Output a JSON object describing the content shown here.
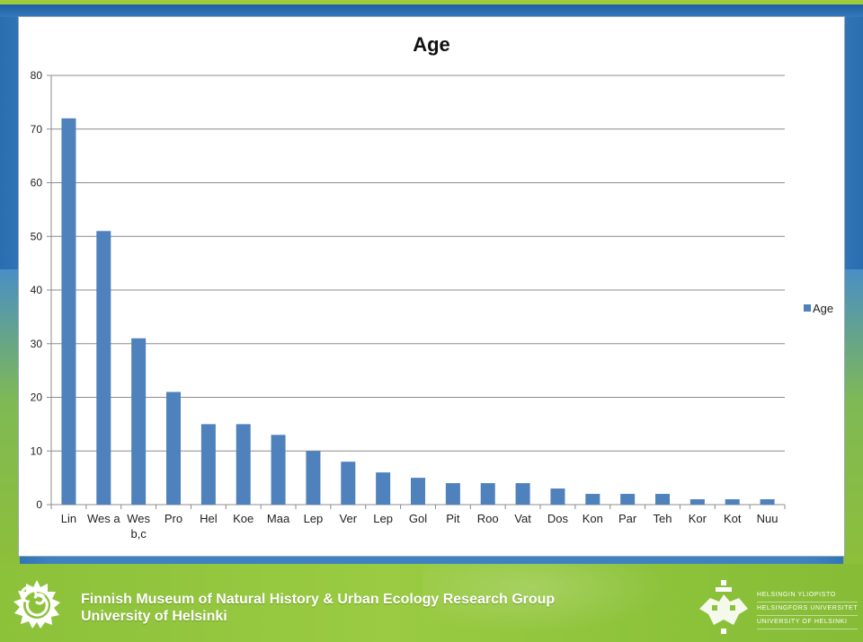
{
  "chart_data": {
    "type": "bar",
    "title": "Age",
    "xlabel": "",
    "ylabel": "",
    "ylim": [
      0,
      80
    ],
    "yticks": [
      0,
      10,
      20,
      30,
      40,
      50,
      60,
      70,
      80
    ],
    "grid": true,
    "legend_position": "right",
    "categories": [
      "Lin",
      "Wes a",
      "Wes b,c",
      "Pro",
      "Hel",
      "Koe",
      "Maa",
      "Lep",
      "Ver",
      "Lep",
      "Gol",
      "Pit",
      "Roo",
      "Vat",
      "Dos",
      "Kon",
      "Par",
      "Teh",
      "Kor",
      "Kot",
      "Nuu"
    ],
    "series": [
      {
        "name": "Age",
        "color": "#4f81bd",
        "values": [
          72,
          51,
          31,
          21,
          15,
          15,
          13,
          10,
          8,
          6,
          5,
          4,
          4,
          4,
          3,
          2,
          2,
          2,
          1,
          1,
          1
        ]
      }
    ]
  },
  "footer": {
    "line1": "Finnish Museum of Natural History & Urban Ecology Research Group",
    "line2": "University of Helsinki",
    "university_names": [
      "Helsingin yliopisto",
      "Helsingfors universitet",
      "University of Helsinki"
    ]
  },
  "icons": {
    "museum_logo": "spiral-snail-logo",
    "university_emblem": "university-of-helsinki-emblem"
  },
  "colors": {
    "slide_blue": "#3f82c2",
    "footer_green": "#9acb42",
    "bar_blue": "#4f81bd"
  }
}
